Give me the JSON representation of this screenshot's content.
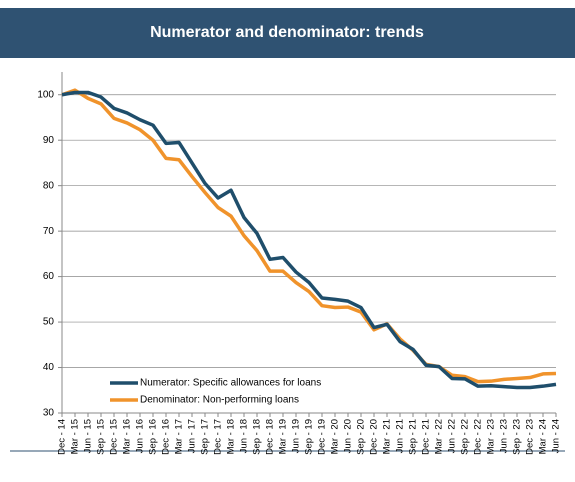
{
  "chart_data": {
    "type": "line",
    "title": "Numerator and denominator: trends",
    "categories": [
      "Dec - 14",
      "Mar - 15",
      "Jun - 15",
      "Sep - 15",
      "Dec - 15",
      "Mar - 16",
      "Jun - 16",
      "Sep - 16",
      "Dec - 16",
      "Mar - 17",
      "Jun - 17",
      "Sep - 17",
      "Dec - 17",
      "Mar - 18",
      "Jun - 18",
      "Sep - 18",
      "Dec - 18",
      "Mar - 19",
      "Jun - 19",
      "Sep - 19",
      "Dec - 19",
      "Mar - 20",
      "Jun - 20",
      "Sep - 20",
      "Dec - 20",
      "Mar - 21",
      "Jun - 21",
      "Sep - 21",
      "Dec - 21",
      "Mar - 22",
      "Jun - 22",
      "Sep - 22",
      "Dec - 22",
      "Mar - 23",
      "Jun - 23",
      "Sep - 23",
      "Dec - 23",
      "Mar - 24",
      "Jun - 24"
    ],
    "series": [
      {
        "name": "Numerator: Specific allowances for loans",
        "color": "#1f4e6b",
        "values": [
          100,
          100.5,
          100.5,
          99.5,
          97,
          96,
          94.5,
          93.3,
          89.3,
          89.5,
          85,
          80.5,
          77.3,
          79,
          73,
          69.5,
          63.8,
          64.2,
          61,
          58.7,
          55.3,
          55,
          54.6,
          53.2,
          48.8,
          49.5,
          45.7,
          44,
          40.5,
          40.2,
          37.6,
          37.5,
          35.9,
          36,
          35.8,
          35.6,
          35.6,
          35.9,
          36.3
        ]
      },
      {
        "name": "Denominator: Non-performing loans",
        "color": "#f0932b",
        "values": [
          100,
          101,
          99.2,
          98,
          94.8,
          93.8,
          92.3,
          90,
          86,
          85.7,
          82,
          78.5,
          75.2,
          73.3,
          69,
          65.7,
          61.2,
          61.2,
          58.7,
          56.7,
          53.6,
          53.2,
          53.3,
          52.2,
          48.3,
          49.6,
          46.3,
          43.8,
          40.7,
          40.2,
          38.3,
          38,
          36.9,
          37,
          37.4,
          37.6,
          37.8,
          38.6,
          38.7
        ]
      }
    ],
    "ylim": [
      30,
      105
    ],
    "yticks": [
      30,
      40,
      50,
      60,
      70,
      80,
      90,
      100
    ],
    "grid": true,
    "legend": "lower left"
  }
}
